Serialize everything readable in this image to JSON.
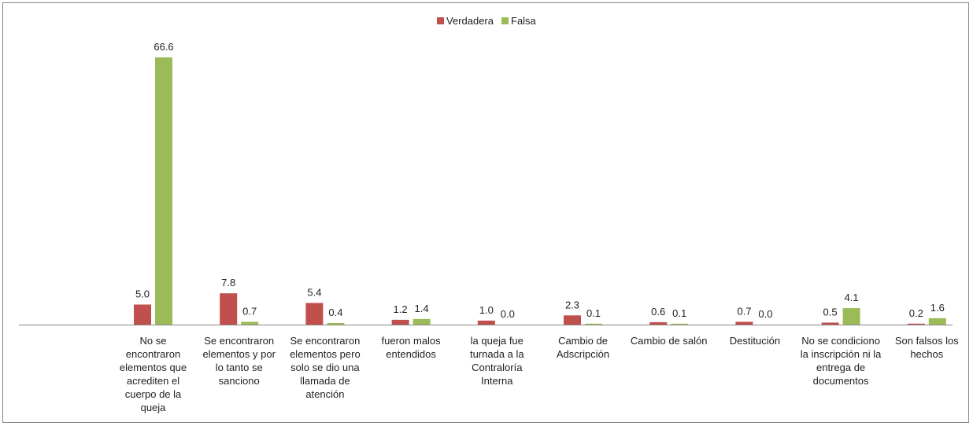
{
  "chart_data": {
    "type": "bar",
    "categories": [
      "No se encontraron elementos que acrediten el cuerpo de la queja",
      "Se encontraron elementos y por lo tanto se sanciono",
      "Se encontraron elementos pero solo se dio una llamada de atención",
      "fueron malos entendidos",
      "la queja fue turnada a la Contraloría Interna",
      "Cambio de Adscripción",
      "Cambio de salón",
      "Destitución",
      "No se condiciono la inscripción ni la entrega de documentos",
      "Son falsos los hechos"
    ],
    "category_lines": [
      [
        "No se",
        "encontraron",
        "elementos que",
        "acrediten el",
        "cuerpo de la",
        "queja"
      ],
      [
        "Se encontraron",
        "elementos y por",
        "lo tanto se",
        "sanciono"
      ],
      [
        "Se encontraron",
        "elementos pero",
        "solo se dio una",
        "llamada de",
        "atención"
      ],
      [
        "fueron malos",
        "entendidos"
      ],
      [
        "la queja fue",
        "turnada a la",
        "Contraloría",
        "Interna"
      ],
      [
        "Cambio de",
        "Adscripción"
      ],
      [
        "Cambio de salón"
      ],
      [
        "Destitución"
      ],
      [
        "No se condiciono",
        "la inscripción ni la",
        "entrega de",
        "documentos"
      ],
      [
        "Son falsos los",
        "hechos"
      ]
    ],
    "series": [
      {
        "name": "Verdadera",
        "color": "#c0504d",
        "values": [
          5.0,
          7.8,
          5.4,
          1.2,
          1.0,
          2.3,
          0.6,
          0.7,
          0.5,
          0.2
        ]
      },
      {
        "name": "Falsa",
        "color": "#9bbb59",
        "values": [
          66.6,
          0.7,
          0.4,
          1.4,
          0.0,
          0.1,
          0.1,
          0.0,
          4.1,
          1.6
        ]
      }
    ],
    "value_labels": [
      [
        "5.0",
        "7.8",
        "5.4",
        "1.2",
        "1.0",
        "2.3",
        "0.6",
        "0.7",
        "0.5",
        "0.2"
      ],
      [
        "66.6",
        "0.7",
        "0.4",
        "1.4",
        "0.0",
        "0.1",
        "0.1",
        "0.0",
        "4.1",
        "1.6"
      ]
    ],
    "ylim": [
      0,
      70
    ],
    "grid": false,
    "legend": "top-center",
    "title": "",
    "xlabel": "",
    "ylabel": ""
  }
}
